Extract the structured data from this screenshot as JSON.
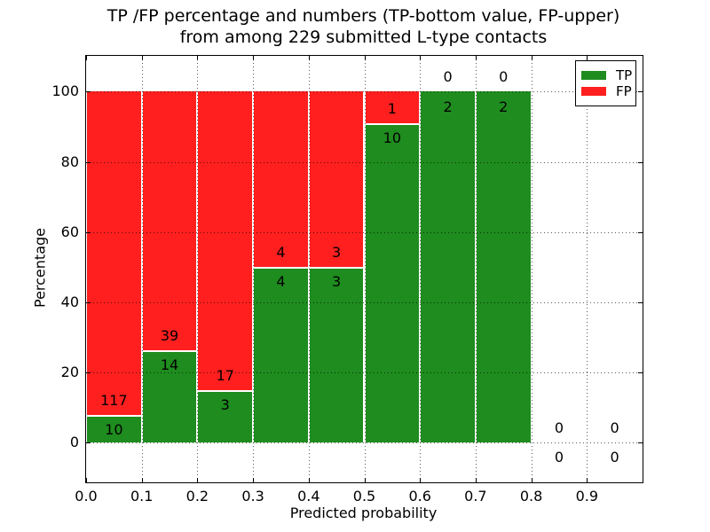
{
  "title": {
    "line1": "TP /FP percentage and numbers (TP-bottom value, FP-upper)",
    "line2": "from among 229 submitted L-type contacts"
  },
  "axes": {
    "xlabel": "Predicted probability",
    "ylabel": "Percentage",
    "x_ticks": [
      "0.0",
      "0.1",
      "0.2",
      "0.3",
      "0.4",
      "0.5",
      "0.6",
      "0.7",
      "0.8",
      "0.9"
    ],
    "y_ticks": [
      "0",
      "20",
      "40",
      "60",
      "80",
      "100"
    ]
  },
  "legend": {
    "items": [
      {
        "label": "TP",
        "color": "#1e8c1e"
      },
      {
        "label": "FP",
        "color": "#ff1f1f"
      }
    ]
  },
  "colors": {
    "tp": "#1e8c1e",
    "fp": "#ff1f1f",
    "grid": "#000000",
    "text": "#000000",
    "background": "#ffffff",
    "bar_edge": "#ffffff"
  },
  "chart_data": {
    "type": "bar",
    "stacked": true,
    "title": "TP /FP percentage and numbers (TP-bottom value, FP-upper)\nfrom among 229 submitted L-type contacts",
    "xlabel": "Predicted probability",
    "ylabel": "Percentage",
    "xlim": [
      0.0,
      1.0
    ],
    "ylim": [
      -11.3,
      110.2
    ],
    "y_tick_values": [
      0,
      20,
      40,
      60,
      80,
      100
    ],
    "x_tick_values": [
      0.0,
      0.1,
      0.2,
      0.3,
      0.4,
      0.5,
      0.6,
      0.7,
      0.8,
      0.9
    ],
    "grid": "dotted",
    "legend_position": "upper right",
    "bin_width": 0.1,
    "total_contacts": 229,
    "bins": [
      {
        "x_start": 0.0,
        "tp": 10,
        "fp": 117,
        "tp_pct": 7.87,
        "fp_pct": 92.13
      },
      {
        "x_start": 0.1,
        "tp": 14,
        "fp": 39,
        "tp_pct": 26.42,
        "fp_pct": 73.58
      },
      {
        "x_start": 0.2,
        "tp": 3,
        "fp": 17,
        "tp_pct": 15.0,
        "fp_pct": 85.0
      },
      {
        "x_start": 0.3,
        "tp": 4,
        "fp": 4,
        "tp_pct": 50.0,
        "fp_pct": 50.0
      },
      {
        "x_start": 0.4,
        "tp": 3,
        "fp": 3,
        "tp_pct": 50.0,
        "fp_pct": 50.0
      },
      {
        "x_start": 0.5,
        "tp": 10,
        "fp": 1,
        "tp_pct": 90.91,
        "fp_pct": 9.09
      },
      {
        "x_start": 0.6,
        "tp": 2,
        "fp": 0,
        "tp_pct": 100.0,
        "fp_pct": 0.0
      },
      {
        "x_start": 0.7,
        "tp": 2,
        "fp": 0,
        "tp_pct": 100.0,
        "fp_pct": 0.0
      },
      {
        "x_start": 0.8,
        "tp": 0,
        "fp": 0,
        "tp_pct": 0.0,
        "fp_pct": 0.0
      },
      {
        "x_start": 0.9,
        "tp": 0,
        "fp": 0,
        "tp_pct": 0.0,
        "fp_pct": 0.0
      }
    ],
    "series": [
      {
        "name": "TP",
        "color": "#1e8c1e",
        "values": [
          10,
          14,
          3,
          4,
          3,
          10,
          2,
          2,
          0,
          0
        ]
      },
      {
        "name": "FP",
        "color": "#ff1f1f",
        "values": [
          117,
          39,
          17,
          4,
          3,
          1,
          0,
          0,
          0,
          0
        ]
      }
    ]
  }
}
